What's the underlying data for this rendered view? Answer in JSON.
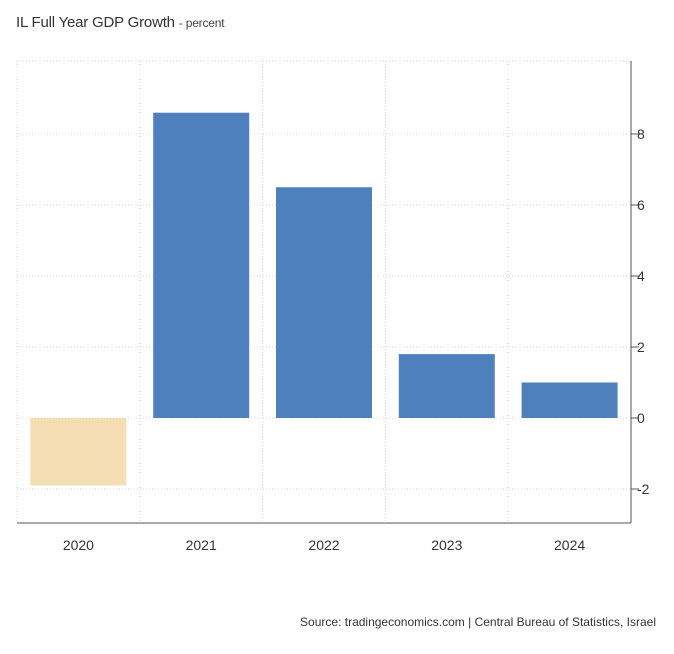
{
  "chart_data": {
    "type": "bar",
    "title": "IL Full Year GDP Growth",
    "unit": "percent",
    "categories": [
      "2020",
      "2021",
      "2022",
      "2023",
      "2024"
    ],
    "values": [
      -1.9,
      8.6,
      6.5,
      1.8,
      1.0
    ],
    "bar_colors": [
      "#f5deb3",
      "#4e80bd",
      "#4e80bd",
      "#4e80bd",
      "#4e80bd"
    ],
    "negative_color": "#f5deb3",
    "positive_color": "#4e80bd",
    "y_ticks": [
      8,
      6,
      4,
      2,
      0,
      -2
    ],
    "y_tick_labels": [
      "8",
      "6",
      "4",
      "2",
      "0",
      "-2"
    ],
    "ylim": [
      -3,
      10
    ],
    "y_axis_side": "right",
    "grid": true,
    "legend": false,
    "xlabel": "",
    "ylabel": ""
  },
  "footer": {
    "source": "Source: tradingeconomics.com | Central Bureau of Statistics, Israel"
  }
}
